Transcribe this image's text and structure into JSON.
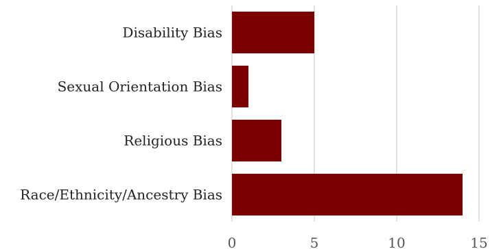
{
  "chart_data": {
    "type": "bar",
    "orientation": "horizontal",
    "categories": [
      "Disability Bias",
      "Sexual Orientation Bias",
      "Religious Bias",
      "Race/Ethnicity/Ancestry Bias"
    ],
    "values": [
      5,
      1,
      3,
      14
    ],
    "xlim": [
      0,
      15
    ],
    "xticks": [
      "0",
      "5",
      "10",
      "15"
    ],
    "grid": true,
    "legend": "none",
    "bar_color": "#7b0000",
    "grid_color": "#d9d9d9",
    "title": "",
    "xlabel": "",
    "ylabel": ""
  }
}
